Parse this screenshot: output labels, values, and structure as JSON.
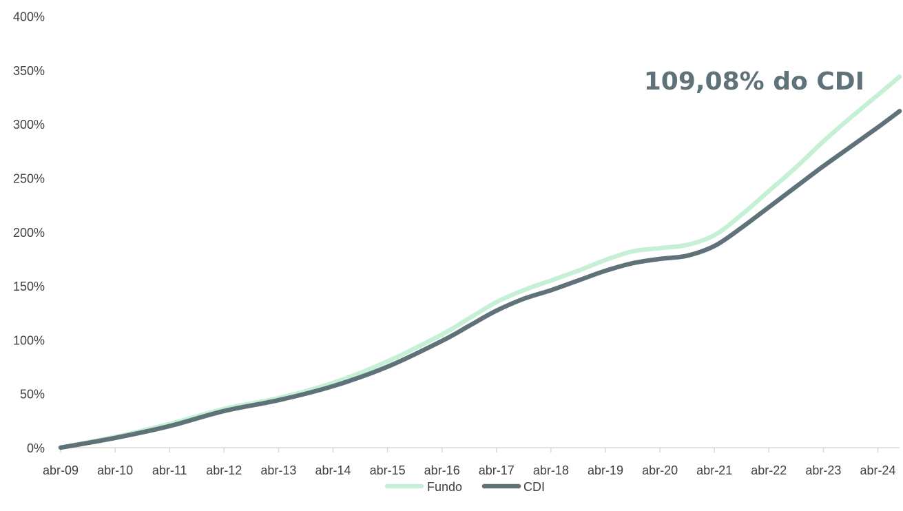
{
  "chart_data": {
    "type": "line",
    "title": "",
    "xlabel": "",
    "ylabel": "",
    "ylim": [
      0,
      400
    ],
    "y_ticks": [
      "0%",
      "50%",
      "100%",
      "150%",
      "200%",
      "250%",
      "300%",
      "350%",
      "400%"
    ],
    "y_tick_values": [
      0,
      50,
      100,
      150,
      200,
      250,
      300,
      350,
      400
    ],
    "categories": [
      "abr-09",
      "abr-10",
      "abr-11",
      "abr-12",
      "abr-13",
      "abr-14",
      "abr-15",
      "abr-16",
      "abr-17",
      "abr-18",
      "abr-19",
      "abr-20",
      "abr-21",
      "abr-22",
      "abr-23",
      "abr-24"
    ],
    "x_end": 15.4,
    "grid": false,
    "legend_position": "bottom",
    "annotation": "109,08% do CDI",
    "series": [
      {
        "name": "Fundo",
        "color": "#c5f0d5",
        "x": [
          0,
          1,
          2,
          3,
          4,
          5,
          6,
          7,
          7.5,
          8,
          8.5,
          9,
          9.5,
          10,
          10.5,
          11,
          11.5,
          12,
          12.5,
          13,
          13.5,
          14,
          14.5,
          15,
          15.4
        ],
        "y": [
          0,
          10,
          22,
          36,
          46,
          60,
          80,
          105,
          120,
          135,
          146,
          155,
          164,
          174,
          182,
          185,
          188,
          197,
          216,
          238,
          260,
          284,
          306,
          327,
          344
        ]
      },
      {
        "name": "CDI",
        "color": "#5f7179",
        "x": [
          0,
          1,
          2,
          3,
          4,
          5,
          6,
          7,
          7.5,
          8,
          8.5,
          9,
          9.5,
          10,
          10.5,
          11,
          11.5,
          12,
          12.5,
          13,
          13.5,
          14,
          14.5,
          15,
          15.4
        ],
        "y": [
          0,
          9,
          20,
          34,
          44,
          57,
          75,
          99,
          113,
          127,
          138,
          146,
          155,
          164,
          171,
          175,
          178,
          187,
          204,
          223,
          242,
          261,
          279,
          297,
          312
        ]
      }
    ]
  }
}
